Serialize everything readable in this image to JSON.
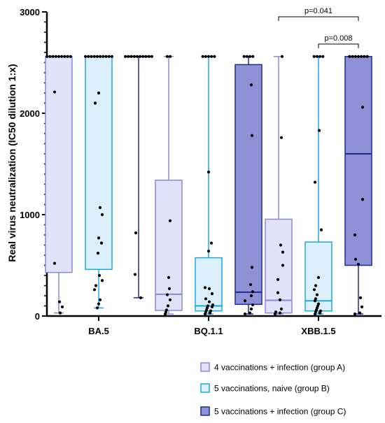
{
  "chart_data": {
    "type": "box",
    "ylabel": "Real virus neutralization (IC50 dilution 1:x)",
    "ylim": [
      0,
      3000
    ],
    "yticks": [
      0,
      1000,
      2000,
      3000
    ],
    "categories": [
      "BA.5",
      "BQ.1.1",
      "XBB.1.5"
    ],
    "series": [
      {
        "name": "4 vaccinations + infection (group A)",
        "color": "#8a87dc",
        "fill": "#e3e2fa",
        "boxes": [
          {
            "category": "BA.5",
            "min": 30,
            "q1": 430,
            "median": 2560,
            "q3": 2560,
            "max": 2560,
            "points": [
              2560,
              2560,
              2560,
              2560,
              2560,
              2560,
              2560,
              2560,
              2560,
              2210,
              520,
              140,
              90,
              30
            ]
          },
          {
            "category": "BQ.1.1",
            "min": 20,
            "q1": 55,
            "median": 215,
            "q3": 1340,
            "max": 2560,
            "points": [
              2560,
              2560,
              940,
              380,
              270,
              210,
              160,
              100,
              60,
              40,
              20
            ]
          },
          {
            "category": "XBB.1.5",
            "min": 20,
            "q1": 30,
            "median": 155,
            "q3": 955,
            "max": 2560,
            "points": [
              2560,
              1760,
              700,
              630,
              500,
              360,
              230,
              160,
              70,
              40,
              30,
              20
            ]
          }
        ]
      },
      {
        "name": "5 vaccinations, naive (group B)",
        "color": "#1ea9e1",
        "fill": "#dcf0fb",
        "boxes": [
          {
            "category": "BA.5",
            "min": 80,
            "q1": 460,
            "median": 2560,
            "q3": 2560,
            "max": 2560,
            "points": [
              2560,
              2560,
              2560,
              2560,
              2560,
              2560,
              2560,
              2560,
              2560,
              2560,
              2200,
              2100,
              1070,
              1000,
              770,
              720,
              620,
              400,
              350,
              300,
              260,
              160,
              120,
              80
            ]
          },
          {
            "category": "BQ.1.1",
            "min": 20,
            "q1": 50,
            "median": 100,
            "q3": 575,
            "max": 2560,
            "points": [
              2560,
              2560,
              2560,
              2560,
              2560,
              1420,
              720,
              640,
              280,
              270,
              220,
              170,
              140,
              110,
              100,
              90,
              80,
              60,
              50,
              40,
              30,
              20
            ]
          },
          {
            "category": "XBB.1.5",
            "min": 20,
            "q1": 50,
            "median": 150,
            "q3": 730,
            "max": 2560,
            "points": [
              2560,
              2560,
              2560,
              2560,
              1830,
              1320,
              850,
              380,
              300,
              260,
              210,
              170,
              150,
              120,
              100,
              80,
              60,
              50,
              40,
              30,
              20
            ]
          }
        ]
      },
      {
        "name": "5 vaccinations + infection (group C)",
        "color": "#1f2b8e",
        "fill": "#8e91d6",
        "boxes": [
          {
            "category": "BA.5",
            "min": 180,
            "q1": 2560,
            "median": 2560,
            "q3": 2560,
            "max": 2560,
            "points": [
              2560,
              2560,
              2560,
              2560,
              2560,
              2560,
              2560,
              2560,
              2560,
              2560,
              820,
              410,
              180
            ]
          },
          {
            "category": "BQ.1.1",
            "min": 20,
            "q1": 115,
            "median": 235,
            "q3": 2480,
            "max": 2560,
            "points": [
              2560,
              2560,
              2560,
              2560,
              2280,
              1780,
              480,
              310,
              240,
              200,
              150,
              110,
              70,
              30,
              20
            ]
          },
          {
            "category": "XBB.1.5",
            "min": 20,
            "q1": 500,
            "median": 1600,
            "q3": 2560,
            "max": 2560,
            "points": [
              2560,
              2560,
              2560,
              2560,
              2560,
              2560,
              2560,
              2060,
              1150,
              800,
              560,
              510,
              180,
              90,
              30,
              20
            ]
          }
        ]
      }
    ],
    "annotations": [
      {
        "text": "p=0.041",
        "category": "XBB.1.5",
        "from_series": 0,
        "to_series": 2
      },
      {
        "text": "p=0.008",
        "category": "XBB.1.5",
        "from_series": 1,
        "to_series": 2
      }
    ],
    "legend_position": "bottom-right"
  }
}
